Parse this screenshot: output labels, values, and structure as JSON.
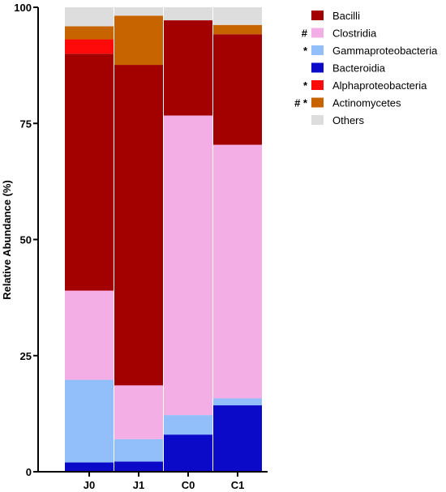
{
  "chart_data": {
    "type": "bar",
    "stacked": true,
    "categories": [
      "J0",
      "J1",
      "C0",
      "C1"
    ],
    "ylabel": "Relative Abundance (%)",
    "xlabel": "",
    "ylim": [
      0,
      100
    ],
    "yticks": [
      0,
      25,
      50,
      75,
      100
    ],
    "grid": false,
    "legend_position": "top-right",
    "series": [
      {
        "name": "Bacteroidia",
        "color": "#0a0ac8",
        "marks": "",
        "values": [
          2,
          2.2,
          8,
          14.3
        ]
      },
      {
        "name": "Gammaproteobacteria",
        "color": "#92bff9",
        "marks": "*",
        "values": [
          17.8,
          4.8,
          4.2,
          1.5
        ]
      },
      {
        "name": "Clostridia",
        "color": "#f4aee6",
        "marks": "#",
        "values": [
          19.2,
          11.6,
          64.5,
          54.6
        ]
      },
      {
        "name": "Bacilli",
        "color": "#a30000",
        "marks": "",
        "values": [
          51,
          69,
          20.5,
          23.8
        ]
      },
      {
        "name": "Alphaproteobacteria",
        "color": "#ff0a0a",
        "marks": "*",
        "values": [
          3.1,
          0,
          0,
          0
        ]
      },
      {
        "name": "Actinomycetes",
        "color": "#c86400",
        "marks": "# *",
        "values": [
          2.8,
          10.6,
          0,
          2
        ]
      },
      {
        "name": "Others",
        "color": "#dddddd",
        "marks": "",
        "values": [
          4.1,
          1.8,
          2.8,
          3.8
        ]
      }
    ],
    "legend_order": [
      "Bacilli",
      "Clostridia",
      "Gammaproteobacteria",
      "Bacteroidia",
      "Alphaproteobacteria",
      "Actinomycetes",
      "Others"
    ]
  }
}
